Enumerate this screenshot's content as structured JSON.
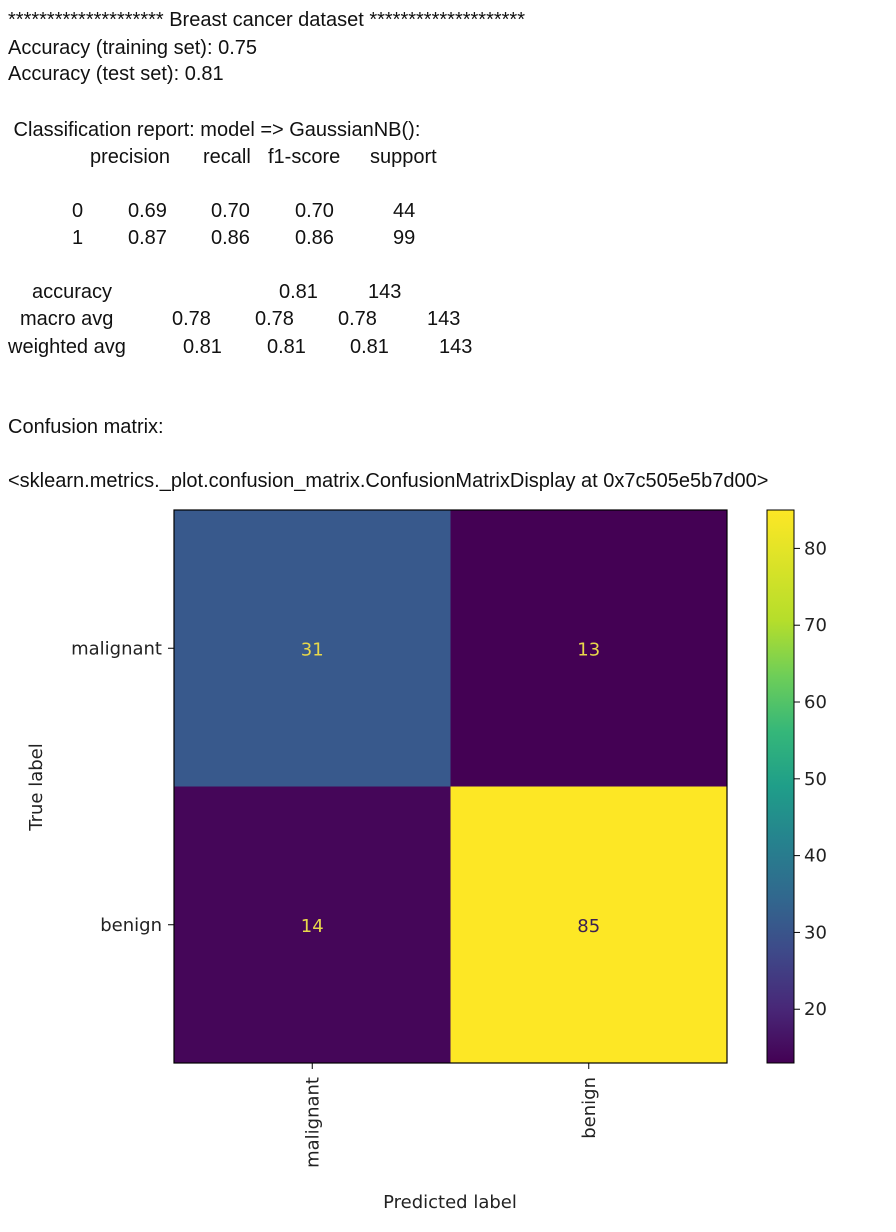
{
  "header": {
    "title_line": "******************** Breast cancer dataset ********************",
    "acc_train": "Accuracy (training set): 0.75",
    "acc_test": "Accuracy (test set): 0.81",
    "report_title": " Classification report: model => GaussianNB():"
  },
  "report": {
    "columns": [
      "precision",
      "recall",
      "f1-score",
      "support"
    ],
    "rows": [
      {
        "label": "0",
        "values": [
          "0.69",
          "0.70",
          "0.70",
          "44"
        ]
      },
      {
        "label": "1",
        "values": [
          "0.87",
          "0.86",
          "0.86",
          "99"
        ]
      }
    ],
    "accuracy": {
      "label": "accuracy",
      "f1": "0.81",
      "support": "143"
    },
    "macro": {
      "label": "macro avg",
      "values": [
        "0.78",
        "0.78",
        "0.78",
        "143"
      ]
    },
    "weighted": {
      "label": "weighted avg",
      "values": [
        "0.81",
        "0.81",
        "0.81",
        "143"
      ]
    }
  },
  "confusion_title": "Confusion matrix:",
  "display_repr": "<sklearn.metrics._plot.confusion_matrix.ConfusionMatrixDisplay at 0x7c505e5b7d00>",
  "chart_data": {
    "type": "heatmap",
    "x_categories": [
      "malignant",
      "benign"
    ],
    "y_categories": [
      "malignant",
      "benign"
    ],
    "values": [
      [
        31,
        13
      ],
      [
        14,
        85
      ]
    ],
    "xlabel": "Predicted label",
    "ylabel": "True label",
    "colorbar_ticks": [
      20,
      30,
      40,
      50,
      60,
      70,
      80
    ],
    "colorbar_range": [
      13,
      85
    ],
    "colormap": "viridis",
    "colors": {
      "low": "#440154",
      "high": "#fde725"
    }
  }
}
